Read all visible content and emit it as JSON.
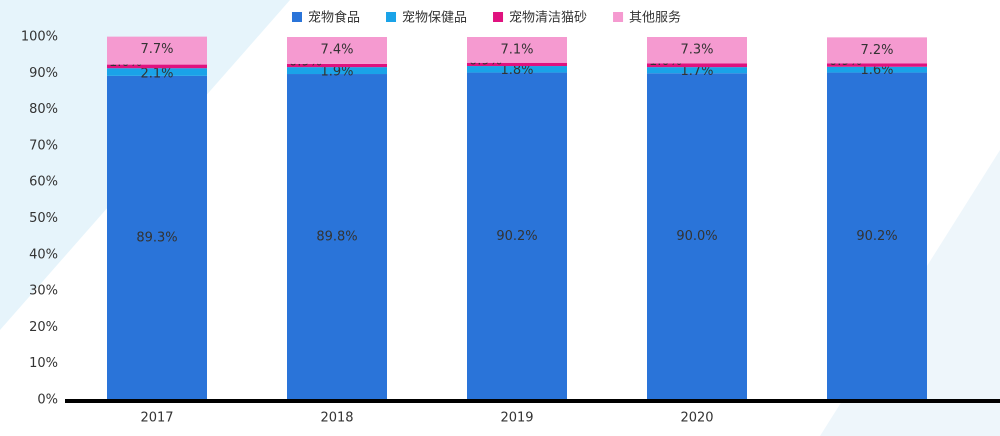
{
  "chart_data": {
    "type": "stacked-bar",
    "categories": [
      "2017",
      "2018",
      "2019",
      "2020",
      null
    ],
    "series": [
      {
        "name": "宠物食品",
        "color": "#2a74d9",
        "values": [
          89.3,
          89.8,
          90.2,
          90.0,
          90.2
        ],
        "value_labels": [
          "89.3%",
          "89.8%",
          "90.2%",
          "90.0%",
          "90.2%"
        ]
      },
      {
        "name": "宠物保健品",
        "color": "#1aa3e8",
        "values": [
          2.1,
          1.9,
          1.8,
          1.7,
          1.6
        ],
        "value_labels": [
          "2.1%",
          "1.9%",
          "1.8%",
          "1.7%",
          "1.6%"
        ]
      },
      {
        "name": "宠物清洁猫砂",
        "color": "#e0127f",
        "values": [
          1.0,
          0.9,
          0.9,
          1.0,
          0.9
        ],
        "value_labels": [
          "1.0%",
          "0.9%",
          "0.9%",
          "1.0%",
          "0.9%"
        ]
      },
      {
        "name": "其他服务",
        "color": "#f59ad0",
        "values": [
          7.7,
          7.4,
          7.1,
          7.3,
          7.2
        ],
        "value_labels": [
          "7.7%",
          "7.4%",
          "7.1%",
          "7.3%",
          "7.2%"
        ]
      }
    ],
    "ylim": [
      0,
      100
    ],
    "yticks": [
      {
        "value": 0,
        "label": "0%"
      },
      {
        "value": 10,
        "label": "10%"
      },
      {
        "value": 20,
        "label": "20%"
      },
      {
        "value": 30,
        "label": "30%"
      },
      {
        "value": 40,
        "label": "40%"
      },
      {
        "value": 50,
        "label": "50%"
      },
      {
        "value": 60,
        "label": "60%"
      },
      {
        "value": 70,
        "label": "70%"
      },
      {
        "value": 80,
        "label": "80%"
      },
      {
        "value": 90,
        "label": "90%"
      },
      {
        "value": 100,
        "label": "100%"
      }
    ]
  }
}
